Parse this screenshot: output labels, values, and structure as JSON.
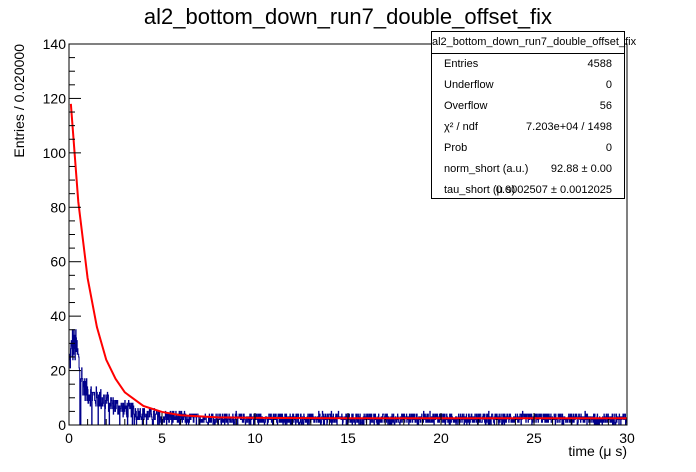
{
  "title": "al2_bottom_down_run7_double_offset_fix",
  "stats": {
    "name": "al2_bottom_down_run7_double_offset_fix",
    "rows": [
      {
        "label": "Entries",
        "value": "4588"
      },
      {
        "label": "Underflow",
        "value": "0"
      },
      {
        "label": "Overflow",
        "value": "56"
      },
      {
        "label": "χ² / ndf",
        "value": "7.203e+04 / 1498"
      },
      {
        "label": "Prob",
        "value": "0"
      },
      {
        "label": "norm_short (a.u.)",
        "value": "92.88 ± 0.00"
      },
      {
        "label": "tau_short (μ s)",
        "value": "0.0002507 ± 0.0012025"
      }
    ]
  },
  "colors": {
    "histogram": "#00008b",
    "fit": "#ff0000",
    "axis": "#000000"
  },
  "chart_data": {
    "type": "histogram",
    "title": "al2_bottom_down_run7_double_offset_fix",
    "xlabel": "time (μ s)",
    "ylabel": "Entries / 0.020000",
    "xlim": [
      0,
      30
    ],
    "ylim": [
      0,
      140
    ],
    "x_ticks": [
      "0",
      "5",
      "10",
      "15",
      "20",
      "25",
      "30"
    ],
    "y_ticks": [
      "0",
      "20",
      "40",
      "60",
      "80",
      "100",
      "120",
      "140"
    ],
    "legend": "top-right",
    "series": [
      {
        "bin_width": 0.02,
        "profile_x": [
          0,
          0.2,
          0.4,
          0.6,
          0.8,
          1.0,
          1.5,
          2.0,
          2.5,
          3.0,
          4.0,
          5.0,
          7.0,
          10.0,
          15.0,
          20.0,
          25.0,
          30.0
        ],
        "profile_y": [
          22,
          30,
          28,
          20,
          14,
          12,
          10,
          9,
          7,
          6,
          4,
          3,
          2.5,
          2.5,
          2.5,
          2.5,
          2.5,
          2.5
        ]
      },
      {
        "x": [
          0.1,
          0.5,
          1.0,
          1.5,
          2.0,
          2.5,
          3.0,
          4.0,
          5.0,
          6.0,
          8.0,
          10.0,
          15.0,
          20.0,
          25.0,
          30.0
        ],
        "y": [
          118,
          82,
          54,
          36,
          24,
          17,
          12,
          7,
          4.8,
          3.6,
          2.8,
          2.6,
          2.5,
          2.5,
          2.5,
          2.5
        ]
      }
    ]
  }
}
